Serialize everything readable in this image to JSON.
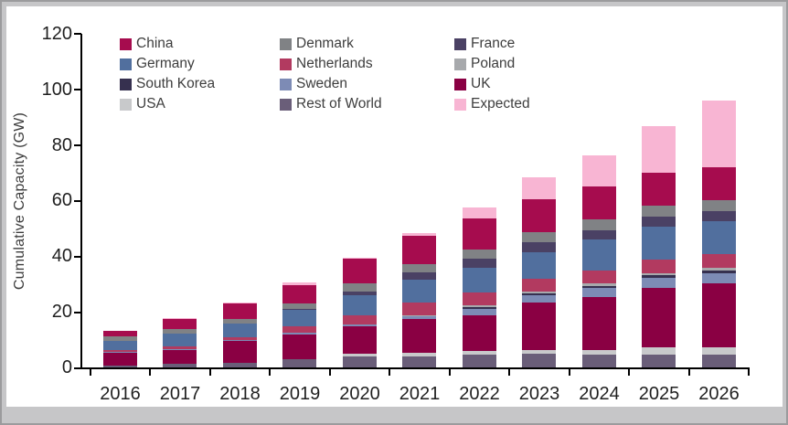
{
  "chart_data": {
    "type": "bar",
    "stacked": true,
    "title": "",
    "xlabel": "",
    "ylabel": "Cumulative Capacity (GW)",
    "ylim": [
      0,
      120
    ],
    "yticks": [
      0,
      20,
      40,
      60,
      80,
      100,
      120
    ],
    "grid": false,
    "legend_position": "top-left, 3 columns, 4 rows",
    "categories": [
      "2016",
      "2017",
      "2018",
      "2019",
      "2020",
      "2021",
      "2022",
      "2023",
      "2024",
      "2025",
      "2026"
    ],
    "stack_order_bottom_to_top": [
      "Rest of World",
      "USA",
      "UK",
      "Sweden",
      "South Korea",
      "Poland",
      "Netherlands",
      "Germany",
      "France",
      "Denmark",
      "China",
      "Expected"
    ],
    "series": [
      {
        "name": "China",
        "color": "#A60C4E",
        "values": [
          2.2,
          3.6,
          5.6,
          6.8,
          8.9,
          10.2,
          11.2,
          11.8,
          11.8,
          11.8,
          11.8
        ]
      },
      {
        "name": "Denmark",
        "color": "#808285",
        "values": [
          1.7,
          1.7,
          1.7,
          1.7,
          2.8,
          3.1,
          3.4,
          3.8,
          3.9,
          3.9,
          3.9
        ]
      },
      {
        "name": "France",
        "color": "#4A4164",
        "values": [
          0,
          0,
          0,
          0.5,
          1.4,
          2.4,
          3.3,
          3.5,
          3.5,
          3.7,
          3.7
        ]
      },
      {
        "name": "Germany",
        "color": "#516F9E",
        "values": [
          3.1,
          4.6,
          4.7,
          5.9,
          7.2,
          8.2,
          8.9,
          9.5,
          11.2,
          11.8,
          11.8
        ]
      },
      {
        "name": "Netherlands",
        "color": "#B23A60",
        "values": [
          0.7,
          1.0,
          1.3,
          2.2,
          3.2,
          4.6,
          4.6,
          4.6,
          4.6,
          4.9,
          4.9
        ]
      },
      {
        "name": "Poland",
        "color": "#A7A9AC",
        "values": [
          0,
          0,
          0,
          0,
          0,
          0.2,
          0.7,
          0.8,
          0.8,
          0.8,
          1.0
        ]
      },
      {
        "name": "South Korea",
        "color": "#36304F",
        "values": [
          0,
          0,
          0,
          0,
          0,
          0.3,
          0.4,
          0.5,
          0.7,
          0.9,
          1.0
        ]
      },
      {
        "name": "Sweden",
        "color": "#7D8BB5",
        "values": [
          0.2,
          0.2,
          0.3,
          0.7,
          0.7,
          1.1,
          2.6,
          2.6,
          3.2,
          3.6,
          3.6
        ]
      },
      {
        "name": "UK",
        "color": "#8A0043",
        "values": [
          4.6,
          5.0,
          7.9,
          9.0,
          9.9,
          12.2,
          12.7,
          17.1,
          19.2,
          21.5,
          23.0
        ]
      },
      {
        "name": "USA",
        "color": "#C8C9CB",
        "values": [
          0,
          0,
          0,
          0,
          1.0,
          1.2,
          1.3,
          1.6,
          1.6,
          2.6,
          2.6
        ]
      },
      {
        "name": "Rest of World",
        "color": "#6A5E79",
        "values": [
          0.8,
          1.4,
          1.5,
          2.9,
          3.9,
          3.9,
          4.6,
          4.8,
          4.6,
          4.6,
          4.6
        ]
      },
      {
        "name": "Expected",
        "color": "#F8B5D3",
        "values": [
          0,
          0.3,
          0.4,
          1.0,
          0.6,
          1.0,
          3.7,
          7.9,
          11.2,
          16.8,
          24.0
        ]
      }
    ]
  },
  "colors": {
    "panel_background": "#FFFFFF",
    "frame": "#C6C6C8",
    "axis": "#000000",
    "tick_label": "#1F1F1F",
    "legend_text": "#3D3D3D"
  }
}
